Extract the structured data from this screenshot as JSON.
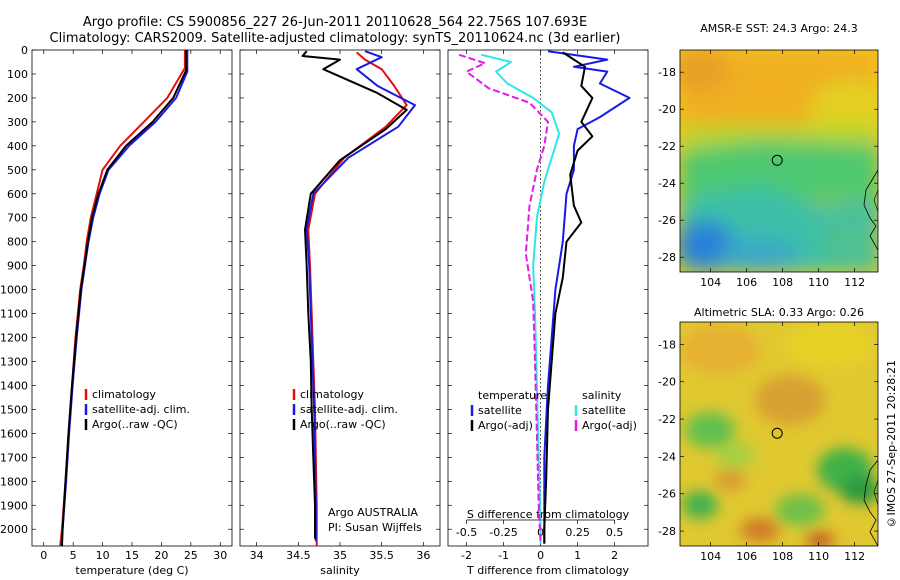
{
  "header": {
    "line1": "Argo profile: CS 5900856_227 26-Jun-2011 20110628_564 22.756S 107.693E",
    "line2": "Climatology: CARS2009. Satellite-adjusted climatology: synTS_20110624.nc (3d earlier)"
  },
  "stamp": "©IMOS 27-Sep-2011 20:28:21",
  "depth_ticks": [
    0,
    100,
    200,
    300,
    400,
    500,
    600,
    700,
    800,
    900,
    1000,
    1100,
    1200,
    1300,
    1400,
    1500,
    1600,
    1700,
    1800,
    1900,
    2000
  ],
  "colors": {
    "climatology": "#e01010",
    "satellite": "#1a1ae6",
    "argo": "#000000",
    "salinity_sat": "#2ee6e6",
    "salinity_argo": "#e61ae6"
  },
  "chart_data": [
    {
      "id": "temperature",
      "type": "line",
      "xlabel": "temperature (deg C)",
      "xlim": [
        -2,
        32
      ],
      "xticks": [
        0,
        5,
        10,
        15,
        20,
        25,
        30
      ],
      "ylim": [
        0,
        2070
      ],
      "yreversed": true,
      "legend": [
        "climatology",
        "satellite-adj. clim.",
        "Argo(..raw -QC)"
      ],
      "series": [
        {
          "name": "climatology",
          "color": "#e01010",
          "points": [
            [
              24,
              0
            ],
            [
              24,
              75
            ],
            [
              21,
              200
            ],
            [
              17,
              300
            ],
            [
              13,
              400
            ],
            [
              10,
              500
            ],
            [
              9,
              600
            ],
            [
              8,
              700
            ],
            [
              7.3,
              800
            ],
            [
              6.8,
              900
            ],
            [
              6.2,
              1000
            ],
            [
              5.4,
              1200
            ],
            [
              4.8,
              1400
            ],
            [
              4.2,
              1600
            ],
            [
              3.7,
              1800
            ],
            [
              3.1,
              2000
            ],
            [
              2.8,
              2070
            ]
          ]
        },
        {
          "name": "satellite-adj. clim.",
          "color": "#1a1ae6",
          "points": [
            [
              24.4,
              0
            ],
            [
              24.4,
              90
            ],
            [
              22.5,
              200
            ],
            [
              19,
              300
            ],
            [
              14.5,
              400
            ],
            [
              11,
              500
            ],
            [
              9.5,
              600
            ],
            [
              8.4,
              700
            ],
            [
              7.6,
              800
            ],
            [
              7,
              900
            ],
            [
              6.4,
              1000
            ],
            [
              5.6,
              1200
            ],
            [
              4.9,
              1400
            ],
            [
              4.3,
              1600
            ],
            [
              3.8,
              1800
            ],
            [
              3.2,
              2000
            ],
            [
              3,
              2070
            ]
          ]
        },
        {
          "name": "Argo(..raw -QC)",
          "color": "#000000",
          "points": [
            [
              24.2,
              0
            ],
            [
              24.2,
              85
            ],
            [
              22,
              200
            ],
            [
              18.5,
              300
            ],
            [
              14,
              400
            ],
            [
              10.8,
              500
            ],
            [
              9.3,
              600
            ],
            [
              8.2,
              700
            ],
            [
              7.5,
              800
            ],
            [
              6.9,
              900
            ],
            [
              6.3,
              1000
            ],
            [
              5.5,
              1200
            ],
            [
              4.8,
              1400
            ],
            [
              4.2,
              1600
            ],
            [
              3.7,
              1800
            ],
            [
              3.2,
              2000
            ],
            [
              3.1,
              2070
            ]
          ]
        }
      ]
    },
    {
      "id": "salinity",
      "type": "line",
      "xlabel": "salinity",
      "xlim": [
        33.8,
        36.2
      ],
      "xticks": [
        34,
        34.5,
        35,
        35.5,
        36
      ],
      "xticklabels": [
        "34",
        "34.5",
        "35",
        "35.5",
        "36"
      ],
      "ylim": [
        0,
        2070
      ],
      "yreversed": true,
      "legend": [
        "climatology",
        "satellite-adj. clim.",
        "Argo(..raw -QC)"
      ],
      "annotation": [
        "Argo AUSTRALIA",
        "PI: Susan Wijffels"
      ],
      "series": [
        {
          "name": "climatology",
          "color": "#e01010",
          "points": [
            [
              35.2,
              10
            ],
            [
              35.3,
              40
            ],
            [
              35.5,
              80
            ],
            [
              35.65,
              150
            ],
            [
              35.8,
              230
            ],
            [
              35.55,
              320
            ],
            [
              35.05,
              450
            ],
            [
              34.7,
              600
            ],
            [
              34.62,
              750
            ],
            [
              34.64,
              900
            ],
            [
              34.66,
              1100
            ],
            [
              34.68,
              1300
            ],
            [
              34.7,
              1500
            ],
            [
              34.71,
              1700
            ],
            [
              34.72,
              1900
            ],
            [
              34.72,
              2070
            ]
          ]
        },
        {
          "name": "satellite-adj. clim.",
          "color": "#1a1ae6",
          "points": [
            [
              35.3,
              5
            ],
            [
              35.5,
              30
            ],
            [
              35.2,
              80
            ],
            [
              35.45,
              150
            ],
            [
              35.9,
              230
            ],
            [
              35.7,
              320
            ],
            [
              35.1,
              450
            ],
            [
              34.68,
              600
            ],
            [
              34.6,
              750
            ],
            [
              34.63,
              900
            ],
            [
              34.65,
              1100
            ],
            [
              34.67,
              1300
            ],
            [
              34.69,
              1500
            ],
            [
              34.7,
              1700
            ],
            [
              34.71,
              1900
            ],
            [
              34.71,
              2050
            ]
          ]
        },
        {
          "name": "Argo(..raw -QC)",
          "color": "#000000",
          "points": [
            [
              34.6,
              5
            ],
            [
              34.55,
              25
            ],
            [
              35.0,
              40
            ],
            [
              34.8,
              80
            ],
            [
              35.45,
              180
            ],
            [
              35.8,
              250
            ],
            [
              35.55,
              330
            ],
            [
              35.0,
              460
            ],
            [
              34.65,
              600
            ],
            [
              34.58,
              750
            ],
            [
              34.6,
              900
            ],
            [
              34.62,
              1100
            ],
            [
              34.65,
              1300
            ],
            [
              34.66,
              1500
            ],
            [
              34.68,
              1700
            ],
            [
              34.7,
              1900
            ],
            [
              34.7,
              2040
            ]
          ]
        }
      ]
    },
    {
      "id": "differences",
      "type": "line",
      "xlabel_top": "S difference from climatology",
      "xlabel": "T difference from climatology",
      "xlim": [
        -2.5,
        2.9
      ],
      "xticks_top": [
        -0.5,
        -0.25,
        0,
        0.25,
        0.5
      ],
      "xticks_top_labels": [
        "-0.5",
        "-0.25",
        "0",
        "0.25",
        "0.5"
      ],
      "xticks": [
        -2,
        -1,
        0,
        1,
        2
      ],
      "ylim": [
        0,
        2070
      ],
      "yreversed": true,
      "legend_headers": [
        "temperature",
        "salinity"
      ],
      "legend_left": [
        "satellite",
        "Argo(-adj)"
      ],
      "legend_right": [
        "satellite",
        "Argo(-adj)"
      ],
      "series": [
        {
          "name": "T satellite",
          "color": "#1a1ae6",
          "points": [
            [
              0.2,
              5
            ],
            [
              1.8,
              40
            ],
            [
              0.9,
              70
            ],
            [
              1.8,
              90
            ],
            [
              1.6,
              140
            ],
            [
              2.4,
              200
            ],
            [
              1.6,
              280
            ],
            [
              1.0,
              330
            ],
            [
              0.9,
              400
            ],
            [
              0.9,
              500
            ],
            [
              0.7,
              600
            ],
            [
              0.6,
              800
            ],
            [
              0.4,
              1000
            ],
            [
              0.3,
              1200
            ],
            [
              0.2,
              1400
            ],
            [
              0.1,
              1700
            ],
            [
              0.1,
              2000
            ],
            [
              0.1,
              2060
            ]
          ]
        },
        {
          "name": "T Argo(-adj)",
          "color": "#000000",
          "points": [
            [
              0.6,
              10
            ],
            [
              1.2,
              70
            ],
            [
              1.1,
              150
            ],
            [
              1.4,
              200
            ],
            [
              1.1,
              300
            ],
            [
              1.4,
              360
            ],
            [
              1.0,
              420
            ],
            [
              0.8,
              520
            ],
            [
              0.9,
              650
            ],
            [
              1.1,
              720
            ],
            [
              0.7,
              800
            ],
            [
              0.6,
              950
            ],
            [
              0.4,
              1100
            ],
            [
              0.3,
              1300
            ],
            [
              0.2,
              1500
            ],
            [
              0.15,
              1800
            ],
            [
              0.1,
              2000
            ],
            [
              0.1,
              2060
            ]
          ]
        },
        {
          "name": "S satellite",
          "color": "#2ee6e6",
          "points": [
            [
              -1.6,
              20
            ],
            [
              -0.8,
              50
            ],
            [
              -1.2,
              90
            ],
            [
              -0.9,
              140
            ],
            [
              -0.2,
              200
            ],
            [
              0.3,
              260
            ],
            [
              0.5,
              350
            ],
            [
              0.3,
              450
            ],
            [
              0.1,
              550
            ],
            [
              -0.1,
              700
            ],
            [
              -0.2,
              900
            ],
            [
              -0.15,
              1100
            ],
            [
              -0.1,
              1400
            ],
            [
              -0.05,
              1700
            ],
            [
              0,
              2000
            ],
            [
              0,
              2060
            ]
          ]
        },
        {
          "name": "S Argo(-adj)",
          "color": "#e61ae6",
          "points": [
            [
              -2.2,
              20
            ],
            [
              -1.5,
              55
            ],
            [
              -2.0,
              90
            ],
            [
              -1.4,
              160
            ],
            [
              -0.3,
              220
            ],
            [
              0.2,
              300
            ],
            [
              0.1,
              400
            ],
            [
              -0.1,
              500
            ],
            [
              -0.3,
              650
            ],
            [
              -0.4,
              850
            ],
            [
              -0.2,
              1050
            ],
            [
              -0.15,
              1300
            ],
            [
              -0.1,
              1600
            ],
            [
              -0.05,
              1900
            ],
            [
              0,
              2060
            ]
          ]
        }
      ]
    }
  ],
  "maps": [
    {
      "id": "sst",
      "title": "AMSR-E SST: 24.3 Argo: 24.3",
      "xticks": [
        104,
        106,
        108,
        110,
        112
      ],
      "yticks": [
        -18,
        -20,
        -22,
        -24,
        -26,
        -28
      ],
      "float": [
        107.7,
        -22.76
      ]
    },
    {
      "id": "sla",
      "title": "Altimetric SLA: 0.33 Argo: 0.26",
      "xticks": [
        104,
        106,
        108,
        110,
        112
      ],
      "yticks": [
        -18,
        -20,
        -22,
        -24,
        -26,
        -28
      ],
      "float": [
        107.7,
        -22.76
      ]
    }
  ]
}
